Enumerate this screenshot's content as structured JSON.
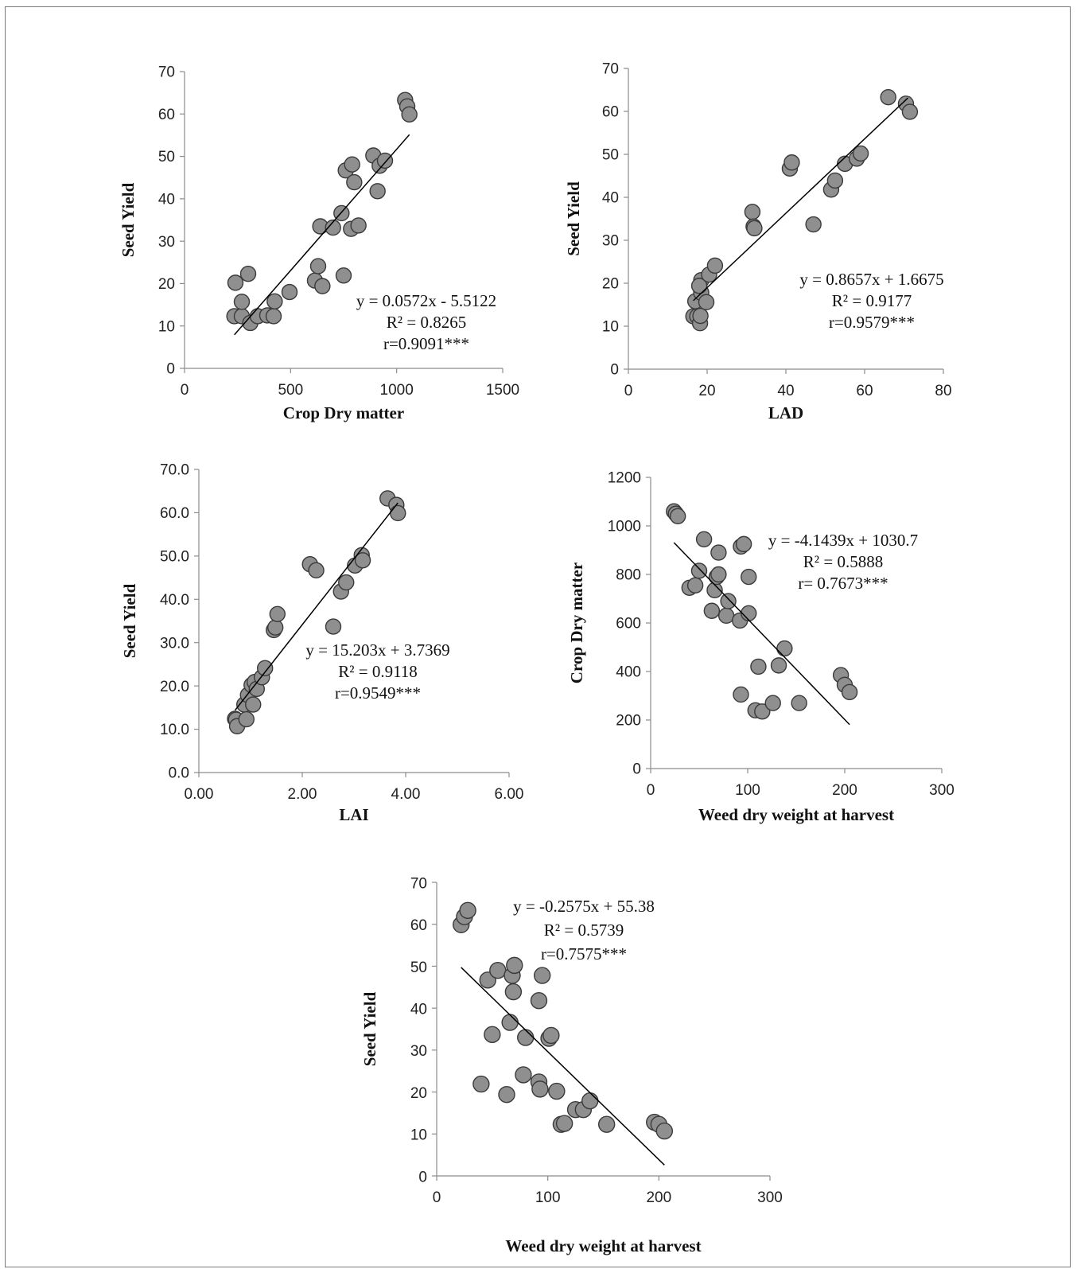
{
  "chart_data": [
    {
      "type": "scatter",
      "xlabel": "Crop Dry matter",
      "ylabel": "Seed Yield",
      "xlim": [
        0,
        1500
      ],
      "ylim": [
        0,
        70
      ],
      "xticks": [
        0,
        500,
        1000,
        1500
      ],
      "yticks": [
        0,
        10,
        20,
        30,
        40,
        50,
        60,
        70
      ],
      "xtick_labels": [
        "0",
        "500",
        "1000",
        "1500"
      ],
      "ytick_labels": [
        "0",
        "10",
        "20",
        "30",
        "40",
        "50",
        "60",
        "70"
      ],
      "points": [
        [
          235,
          12.3
        ],
        [
          240,
          20.2
        ],
        [
          270,
          12.3
        ],
        [
          270,
          15.7
        ],
        [
          300,
          22.3
        ],
        [
          310,
          10.7
        ],
        [
          345,
          12.3
        ],
        [
          390,
          12.5
        ],
        [
          420,
          12.3
        ],
        [
          425,
          15.8
        ],
        [
          495,
          18.0
        ],
        [
          615,
          20.7
        ],
        [
          630,
          24.1
        ],
        [
          640,
          33.5
        ],
        [
          650,
          19.4
        ],
        [
          700,
          33.2
        ],
        [
          740,
          36.6
        ],
        [
          750,
          21.9
        ],
        [
          760,
          46.7
        ],
        [
          785,
          32.9
        ],
        [
          790,
          48.1
        ],
        [
          800,
          43.9
        ],
        [
          820,
          33.7
        ],
        [
          890,
          50.2
        ],
        [
          910,
          41.8
        ],
        [
          920,
          47.8
        ],
        [
          945,
          49.0
        ],
        [
          1040,
          63.3
        ],
        [
          1050,
          61.8
        ],
        [
          1060,
          59.9
        ]
      ],
      "trendline": {
        "slope": 0.0572,
        "intercept": -5.5122,
        "x_range": [
          235,
          1060
        ]
      },
      "annotations": [
        "y = 0.0572x - 5.5122",
        "R² = 0.8265",
        "r=0.9091***"
      ]
    },
    {
      "type": "scatter",
      "xlabel": "LAD",
      "ylabel": "Seed Yield",
      "xlim": [
        0,
        80
      ],
      "ylim": [
        0,
        70
      ],
      "xticks": [
        0,
        20,
        40,
        60,
        80
      ],
      "yticks": [
        0,
        10,
        20,
        30,
        40,
        50,
        60,
        70
      ],
      "xtick_labels": [
        "0",
        "20",
        "40",
        "60",
        "80"
      ],
      "ytick_labels": [
        "0",
        "10",
        "20",
        "30",
        "40",
        "50",
        "60",
        "70"
      ],
      "points": [
        [
          16.5,
          12.3
        ],
        [
          17.0,
          15.8
        ],
        [
          17.5,
          12.3
        ],
        [
          18.2,
          10.7
        ],
        [
          18.3,
          12.4
        ],
        [
          18.5,
          17.8
        ],
        [
          18.5,
          20.7
        ],
        [
          18.0,
          19.4
        ],
        [
          19.8,
          15.6
        ],
        [
          20.5,
          22.0
        ],
        [
          22.0,
          24.1
        ],
        [
          31.5,
          36.6
        ],
        [
          31.8,
          33.2
        ],
        [
          32.0,
          32.8
        ],
        [
          41.0,
          46.7
        ],
        [
          41.5,
          48.1
        ],
        [
          47.0,
          33.7
        ],
        [
          51.5,
          41.8
        ],
        [
          52.5,
          43.9
        ],
        [
          55.0,
          47.8
        ],
        [
          58.0,
          49.0
        ],
        [
          59.0,
          50.2
        ],
        [
          66.0,
          63.3
        ],
        [
          70.5,
          61.8
        ],
        [
          71.5,
          59.9
        ]
      ],
      "trendline": {
        "slope": 0.8657,
        "intercept": 1.6675,
        "x_range": [
          16.5,
          71
        ]
      },
      "annotations": [
        "y = 0.8657x + 1.6675",
        "R² = 0.9177",
        "r=0.9579***"
      ]
    },
    {
      "type": "scatter",
      "xlabel": "LAI",
      "ylabel": "Seed Yield",
      "xlim": [
        0,
        6
      ],
      "ylim": [
        0,
        70
      ],
      "xticks": [
        0,
        2,
        4,
        6
      ],
      "yticks": [
        0,
        10,
        20,
        30,
        40,
        50,
        60,
        70
      ],
      "xtick_labels": [
        "0.00",
        "2.00",
        "4.00",
        "6.00"
      ],
      "ytick_labels": [
        "0.0",
        "10.0",
        "20.0",
        "30.0",
        "40.0",
        "50.0",
        "60.0",
        "70.0"
      ],
      "points": [
        [
          0.7,
          12.4
        ],
        [
          0.72,
          12.2
        ],
        [
          0.74,
          10.7
        ],
        [
          0.88,
          15.7
        ],
        [
          0.92,
          12.3
        ],
        [
          0.95,
          17.9
        ],
        [
          1.02,
          20.2
        ],
        [
          1.05,
          15.7
        ],
        [
          1.08,
          20.9
        ],
        [
          1.12,
          19.3
        ],
        [
          1.22,
          22.0
        ],
        [
          1.28,
          24.1
        ],
        [
          1.45,
          32.9
        ],
        [
          1.48,
          33.5
        ],
        [
          1.52,
          36.6
        ],
        [
          2.15,
          48.1
        ],
        [
          2.27,
          46.7
        ],
        [
          2.6,
          33.7
        ],
        [
          2.75,
          41.8
        ],
        [
          2.85,
          43.9
        ],
        [
          3.02,
          47.8
        ],
        [
          3.15,
          50.2
        ],
        [
          3.17,
          49.0
        ],
        [
          3.65,
          63.3
        ],
        [
          3.82,
          61.8
        ],
        [
          3.85,
          59.9
        ]
      ],
      "trendline": {
        "slope": 15.203,
        "intercept": 3.7369,
        "x_range": [
          0.7,
          3.85
        ]
      },
      "annotations": [
        "y = 15.203x + 3.7369",
        "R² = 0.9118",
        "r=0.9549***"
      ]
    },
    {
      "type": "scatter",
      "xlabel": "Weed dry weight at harvest",
      "ylabel": "Crop Dry matter",
      "xlim": [
        0,
        300
      ],
      "ylim": [
        0,
        1200
      ],
      "xticks": [
        0,
        100,
        200,
        300
      ],
      "yticks": [
        0,
        200,
        400,
        600,
        800,
        1000,
        1200
      ],
      "xtick_labels": [
        "0",
        "100",
        "200",
        "300"
      ],
      "ytick_labels": [
        "0",
        "200",
        "400",
        "600",
        "800",
        "1000",
        "1200"
      ],
      "points": [
        [
          24,
          1060
        ],
        [
          26,
          1050
        ],
        [
          28,
          1040
        ],
        [
          40,
          745
        ],
        [
          46,
          755
        ],
        [
          50,
          815
        ],
        [
          55,
          945
        ],
        [
          63,
          650
        ],
        [
          66,
          735
        ],
        [
          68,
          790
        ],
        [
          70,
          890
        ],
        [
          70,
          800
        ],
        [
          78,
          630
        ],
        [
          80,
          690
        ],
        [
          92,
          610
        ],
        [
          93,
          915
        ],
        [
          93,
          305
        ],
        [
          96,
          925
        ],
        [
          101,
          790
        ],
        [
          101,
          640
        ],
        [
          108,
          240
        ],
        [
          111,
          420
        ],
        [
          115,
          235
        ],
        [
          126,
          270
        ],
        [
          132,
          425
        ],
        [
          138,
          495
        ],
        [
          153,
          270
        ],
        [
          196,
          385
        ],
        [
          200,
          345
        ],
        [
          205,
          315
        ]
      ],
      "trendline": {
        "slope": -4.1439,
        "intercept": 1030.7,
        "x_range": [
          24,
          205
        ]
      },
      "annotations": [
        "y = -4.1439x + 1030.7",
        "R² = 0.5888",
        "r= 0.7673***"
      ]
    },
    {
      "type": "scatter",
      "xlabel": "Weed dry  weight at harvest",
      "ylabel": "Seed Yield",
      "xlim": [
        0,
        300
      ],
      "ylim": [
        0,
        70
      ],
      "xticks": [
        0,
        100,
        200,
        300
      ],
      "yticks": [
        0,
        10,
        20,
        30,
        40,
        50,
        60,
        70
      ],
      "xtick_labels": [
        "0",
        "100",
        "200",
        "300"
      ],
      "ytick_labels": [
        "0",
        "10",
        "20",
        "30",
        "40",
        "50",
        "60",
        "70"
      ],
      "points": [
        [
          22,
          59.9
        ],
        [
          25,
          61.8
        ],
        [
          28,
          63.3
        ],
        [
          40,
          21.9
        ],
        [
          46,
          46.7
        ],
        [
          50,
          33.7
        ],
        [
          55,
          49.0
        ],
        [
          63,
          19.4
        ],
        [
          66,
          36.6
        ],
        [
          68,
          47.8
        ],
        [
          69,
          43.9
        ],
        [
          70,
          50.2
        ],
        [
          78,
          24.1
        ],
        [
          80,
          33.0
        ],
        [
          92,
          41.8
        ],
        [
          92,
          22.4
        ],
        [
          93,
          20.7
        ],
        [
          95,
          47.8
        ],
        [
          101,
          32.8
        ],
        [
          103,
          33.5
        ],
        [
          108,
          20.2
        ],
        [
          112,
          12.3
        ],
        [
          115,
          12.5
        ],
        [
          125,
          15.8
        ],
        [
          132,
          15.8
        ],
        [
          138,
          17.9
        ],
        [
          153,
          12.3
        ],
        [
          196,
          12.8
        ],
        [
          200,
          12.3
        ],
        [
          205,
          10.7
        ]
      ],
      "trendline": {
        "slope": -0.2575,
        "intercept": 55.38,
        "x_range": [
          22,
          205
        ]
      },
      "annotations": [
        "y = -0.2575x + 55.38",
        "R² = 0.5739",
        "r=0.7575***"
      ]
    }
  ]
}
